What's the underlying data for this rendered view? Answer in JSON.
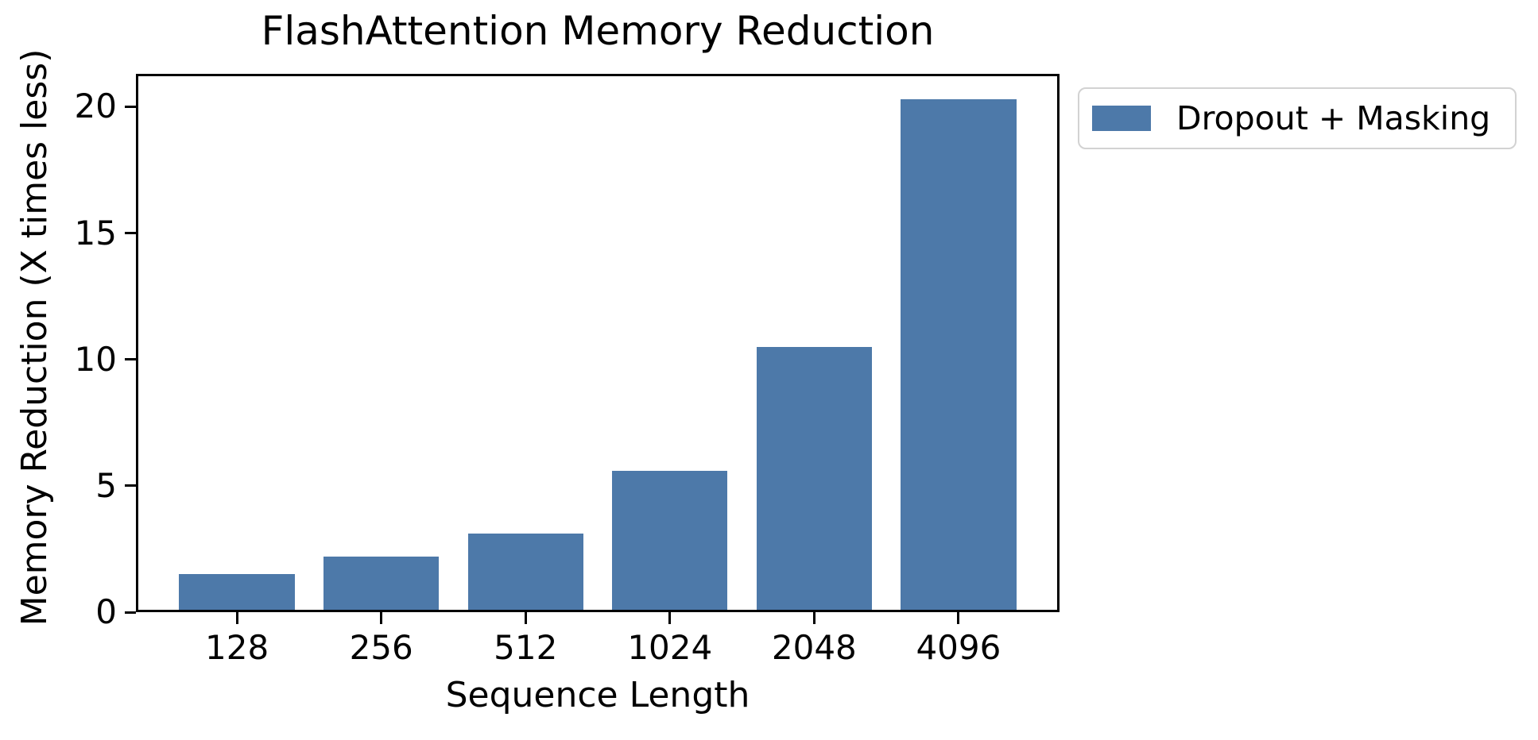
{
  "colors": {
    "bar": "#4d79a9",
    "spine": "#000000",
    "legend_border": "#d2d2d2",
    "background": "#ffffff",
    "text": "#000000"
  },
  "chart_data": {
    "type": "bar",
    "title": "FlashAttention Memory Reduction",
    "xlabel": "Sequence Length",
    "ylabel": "Memory Reduction (X times less)",
    "categories": [
      "128",
      "256",
      "512",
      "1024",
      "2048",
      "4096"
    ],
    "values": [
      1.5,
      2.2,
      3.1,
      5.6,
      10.5,
      20.3
    ],
    "yticks": [
      0,
      5,
      10,
      15,
      20
    ],
    "ylim": [
      0,
      21.3
    ],
    "grid": false,
    "bar_color": "#4d79a9",
    "legend": {
      "position": "outside upper right",
      "entries": [
        {
          "label": "Dropout + Masking",
          "color": "#4d79a9"
        }
      ]
    }
  }
}
